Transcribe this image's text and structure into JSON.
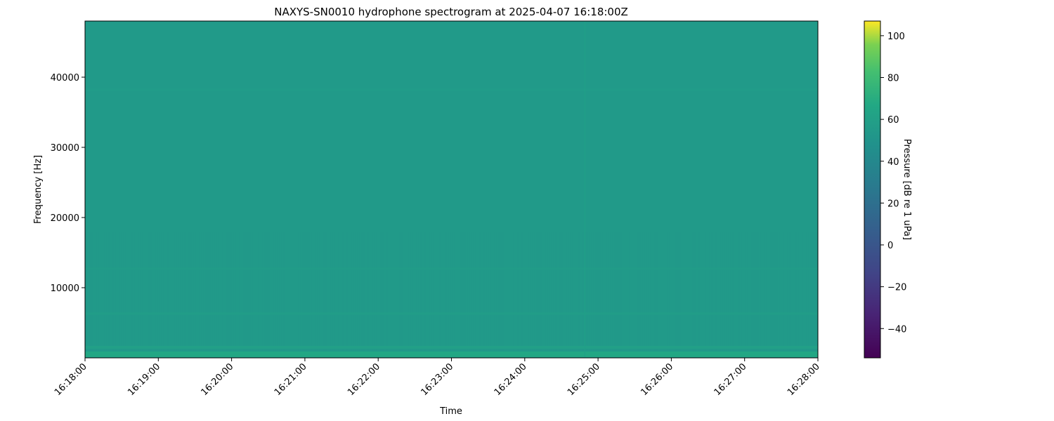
{
  "chart_data": {
    "type": "heatmap",
    "title": "NAXYS-SN0010 hydrophone spectrogram at 2025-04-07 16:18:00Z",
    "xlabel": "Time",
    "ylabel": "Frequency [Hz]",
    "xlim": [
      "16:18:00",
      "16:28:00"
    ],
    "ylim": [
      0,
      48000
    ],
    "x_ticks": [
      "16:18:00",
      "16:19:00",
      "16:20:00",
      "16:21:00",
      "16:22:00",
      "16:23:00",
      "16:24:00",
      "16:25:00",
      "16:26:00",
      "16:27:00",
      "16:28:00"
    ],
    "y_ticks": [
      10000,
      20000,
      30000,
      40000
    ],
    "colormap": "viridis",
    "colorbar": {
      "label": "Pressure [dB re 1 uPa]",
      "range": [
        -54,
        107
      ],
      "ticks": [
        -40,
        -20,
        0,
        20,
        40,
        60,
        80,
        100
      ]
    },
    "background_level_db": 55,
    "features": [
      {
        "kind": "band",
        "freq_hz": 500,
        "level_db": 66
      },
      {
        "kind": "band",
        "freq_hz": 1500,
        "level_db": 60
      },
      {
        "kind": "band",
        "freq_hz": 6300,
        "level_db": 60
      },
      {
        "kind": "band",
        "freq_hz": 12700,
        "level_db": 59
      },
      {
        "kind": "band",
        "freq_hz": 38200,
        "level_db": 58
      },
      {
        "kind": "transient",
        "time": "16:24:49",
        "level_db": 60
      }
    ],
    "grid": false
  }
}
